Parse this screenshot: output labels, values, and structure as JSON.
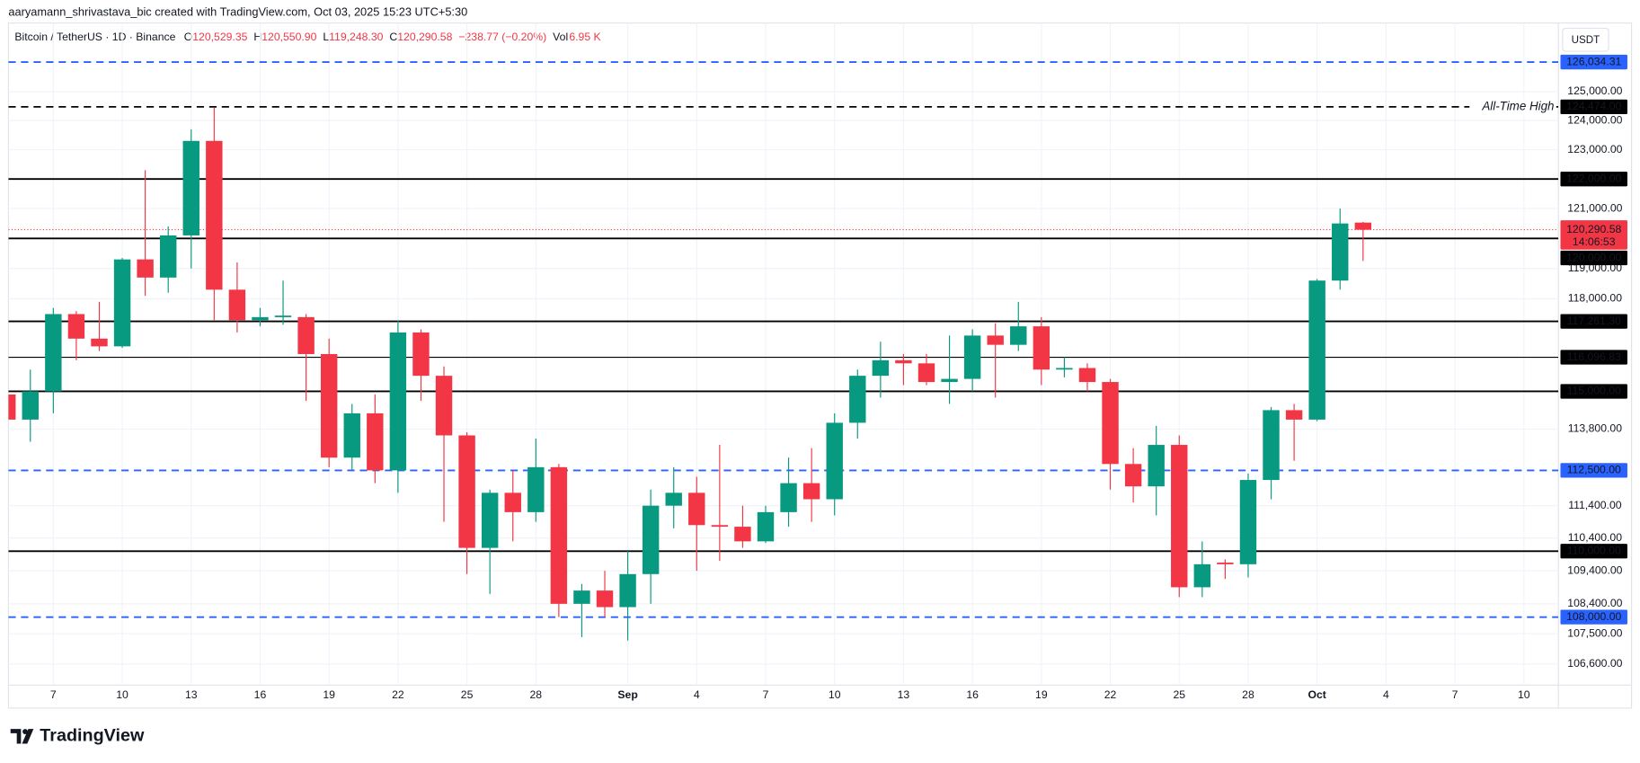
{
  "header": {
    "author_line": "aaryamann_shrivastava_bic created with TradingView.com, Oct 03, 2025 15:23 UTC+5:30"
  },
  "legend": {
    "symbol": "Bitcoin / TetherUS · 1D · Binance",
    "ohlc": [
      {
        "key": "O",
        "label": "120,529.35"
      },
      {
        "key": "H",
        "label": "120,550.90"
      },
      {
        "key": "L",
        "label": "119,248.30"
      },
      {
        "key": "C",
        "label": "120,290.58"
      }
    ],
    "change": "−238.77 (−0.20%)",
    "vol_key": "Vol",
    "vol": "6.95 K"
  },
  "brand": "TradingView",
  "chart_data": {
    "type": "candlestick",
    "log_scale": true,
    "grid": true,
    "currency": "USDT",
    "up_color": "#089981",
    "down_color": "#f23645",
    "categories": [
      null,
      null,
      "7",
      null,
      null,
      "10",
      null,
      null,
      "13",
      null,
      null,
      "16",
      null,
      null,
      "19",
      null,
      null,
      "22",
      null,
      null,
      "25",
      null,
      null,
      "28",
      null,
      null,
      null,
      "Sep",
      null,
      null,
      "4",
      null,
      null,
      "7",
      null,
      null,
      "10",
      null,
      null,
      "13",
      null,
      null,
      "16",
      null,
      null,
      "19",
      null,
      null,
      "22",
      null,
      null,
      "25",
      null,
      null,
      "28",
      null,
      null,
      "Oct",
      null,
      null,
      "4",
      null,
      null,
      "7",
      null,
      null,
      "10",
      null
    ],
    "open": [
      114900,
      114100,
      115000,
      117500,
      116700,
      116450,
      119300,
      118700,
      120100,
      123300,
      118300,
      117300,
      117400,
      117400,
      116200,
      112900,
      114300,
      112500,
      116900,
      115500,
      113600,
      110100,
      111800,
      111200,
      112600,
      108400,
      108800,
      108300,
      109300,
      111400,
      111800,
      110800,
      110750,
      110300,
      111200,
      112100,
      111600,
      114000,
      115500,
      116000,
      115900,
      115300,
      115400,
      116800,
      116500,
      117100,
      115700,
      115750,
      115300,
      112700,
      112000,
      113300,
      108900,
      109650,
      109600,
      112200,
      114400,
      114100,
      118600,
      120529.35,
      null,
      null,
      null,
      null,
      null,
      null,
      null,
      null
    ],
    "high": [
      115200,
      115700,
      117700,
      117600,
      117900,
      119350,
      122300,
      120400,
      123700,
      124450,
      119200,
      117700,
      118600,
      117500,
      116700,
      114600,
      114900,
      117300,
      117000,
      115800,
      113700,
      111900,
      112500,
      113500,
      112700,
      109000,
      109400,
      110000,
      111900,
      112600,
      112300,
      113300,
      111400,
      111400,
      112900,
      113200,
      114300,
      115700,
      116600,
      116200,
      116200,
      116800,
      117000,
      117200,
      117900,
      117400,
      116100,
      115900,
      115400,
      113200,
      113900,
      113600,
      110300,
      109750,
      112400,
      114500,
      114600,
      118650,
      121000,
      120550.9,
      null,
      null,
      null,
      null,
      null,
      null,
      null,
      null
    ],
    "low": [
      113800,
      113400,
      114300,
      116000,
      116300,
      116400,
      118100,
      118200,
      119000,
      117300,
      116900,
      117100,
      117150,
      114700,
      112600,
      112500,
      112100,
      111800,
      114700,
      110900,
      109300,
      108700,
      110300,
      110900,
      108000,
      107400,
      108000,
      107300,
      108400,
      110700,
      109400,
      109700,
      110100,
      110250,
      110750,
      110900,
      111100,
      113500,
      114800,
      115200,
      115200,
      114600,
      115000,
      114800,
      116300,
      115200,
      115450,
      115000,
      111900,
      111500,
      111100,
      108600,
      108600,
      109150,
      109200,
      111600,
      112800,
      114050,
      118300,
      119248.3,
      null,
      null,
      null,
      null,
      null,
      null,
      null,
      null
    ],
    "close": [
      114100,
      115000,
      117500,
      116700,
      116450,
      119300,
      118700,
      120100,
      123300,
      118300,
      117300,
      117400,
      117450,
      116200,
      112900,
      114300,
      112500,
      116900,
      115500,
      113600,
      110100,
      111800,
      111200,
      112600,
      108400,
      108800,
      108300,
      109300,
      111400,
      111800,
      110800,
      110750,
      110300,
      111200,
      112100,
      111600,
      114000,
      115500,
      116000,
      115900,
      115300,
      115400,
      116800,
      116500,
      117100,
      115700,
      115750,
      115300,
      112700,
      112000,
      113300,
      108900,
      109600,
      109600,
      112200,
      114400,
      114100,
      118600,
      120500,
      120290.58,
      null,
      null,
      null,
      null,
      null,
      null,
      null,
      null
    ],
    "ylim": [
      105300,
      127300
    ],
    "yticks": [
      {
        "value": 125000,
        "label": "125,000.00"
      },
      {
        "value": 124000,
        "label": "124,000.00"
      },
      {
        "value": 123000,
        "label": "123,000.00"
      },
      {
        "value": 121000,
        "label": "121,000.00"
      },
      {
        "value": 119000,
        "label": "119,000.00"
      },
      {
        "value": 118000,
        "label": "118,000.00"
      },
      {
        "value": 113800,
        "label": "113,800.00"
      },
      {
        "value": 111400,
        "label": "111,400.00"
      },
      {
        "value": 110400,
        "label": "110,400.00"
      },
      {
        "value": 109400,
        "label": "109,400.00"
      },
      {
        "value": 108400,
        "label": "108,400.00"
      },
      {
        "value": 107500,
        "label": "107,500.00"
      },
      {
        "value": 106600,
        "label": "106,600.00"
      }
    ],
    "levels": [
      {
        "value": 126034.31,
        "label": "126,034.31",
        "style": "dashed",
        "color": "#2962ff"
      },
      {
        "value": 124474,
        "label": "124,474.00",
        "style": "dashed",
        "color": "#000000",
        "note": "All-Time High"
      },
      {
        "value": 122000,
        "label": "122,000.00",
        "style": "solid",
        "color": "#000000"
      },
      {
        "value": 120000,
        "label": "120,000.00",
        "style": "solid",
        "color": "#000000"
      },
      {
        "value": 117261.3,
        "label": "117,261.30",
        "style": "solid",
        "color": "#000000"
      },
      {
        "value": 116096.83,
        "label": "116,096.83",
        "style": "thin",
        "color": "#000000"
      },
      {
        "value": 115000,
        "label": "115,000.00",
        "style": "solid",
        "color": "#000000"
      },
      {
        "value": 112500,
        "label": "112,500.00",
        "style": "dashed",
        "color": "#2962ff"
      },
      {
        "value": 110000,
        "label": "110,000.00",
        "style": "solid",
        "color": "#000000"
      },
      {
        "value": 108000,
        "label": "108,000.00",
        "style": "dashed",
        "color": "#2962ff"
      }
    ],
    "last_price": {
      "value": 120290.58,
      "label": "120,290.58",
      "countdown": "14:06:53",
      "color": "#f23645"
    }
  }
}
